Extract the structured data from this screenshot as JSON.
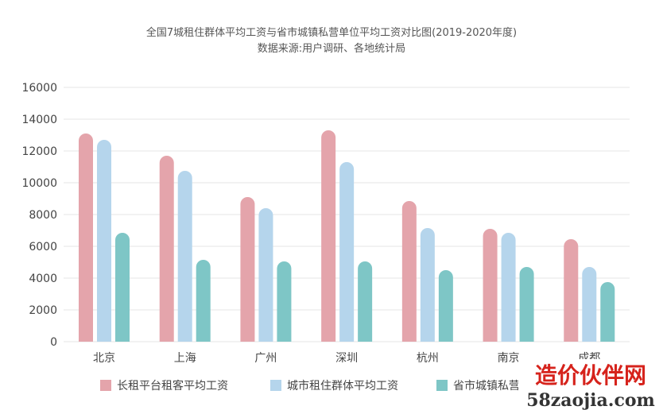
{
  "chart_data": {
    "type": "bar",
    "title": "全国7城租住群体平均工资与省市城镇私营单位平均工资对比图(2019-2020年度)",
    "subtitle": "数据来源:用户调研、各地统计局",
    "xlabel": "",
    "ylabel": "",
    "ylim": [
      0,
      16000
    ],
    "yticks": [
      0,
      2000,
      4000,
      6000,
      8000,
      10000,
      12000,
      14000,
      16000
    ],
    "grid": true,
    "legend_position": "bottom",
    "categories": [
      "北京",
      "上海",
      "广州",
      "深圳",
      "杭州",
      "南京",
      "成都"
    ],
    "series": [
      {
        "name": "长租平台租客平均工资",
        "color": "#e4a4ab",
        "values": [
          13100,
          11700,
          9100,
          13300,
          8850,
          7100,
          6450
        ]
      },
      {
        "name": "城市租住群体平均工资",
        "color": "#b5d5ec",
        "values": [
          12700,
          10750,
          8400,
          11300,
          7150,
          6850,
          4700
        ]
      },
      {
        "name": "省市城镇私营单位平均工资",
        "color": "#7ec6c6",
        "values": [
          6850,
          5150,
          5050,
          5050,
          4500,
          4700,
          3750
        ]
      }
    ]
  },
  "watermark": {
    "text_cn": "造价伙伴网",
    "text_url": "58zaojia.com",
    "color": "#d6231c"
  }
}
